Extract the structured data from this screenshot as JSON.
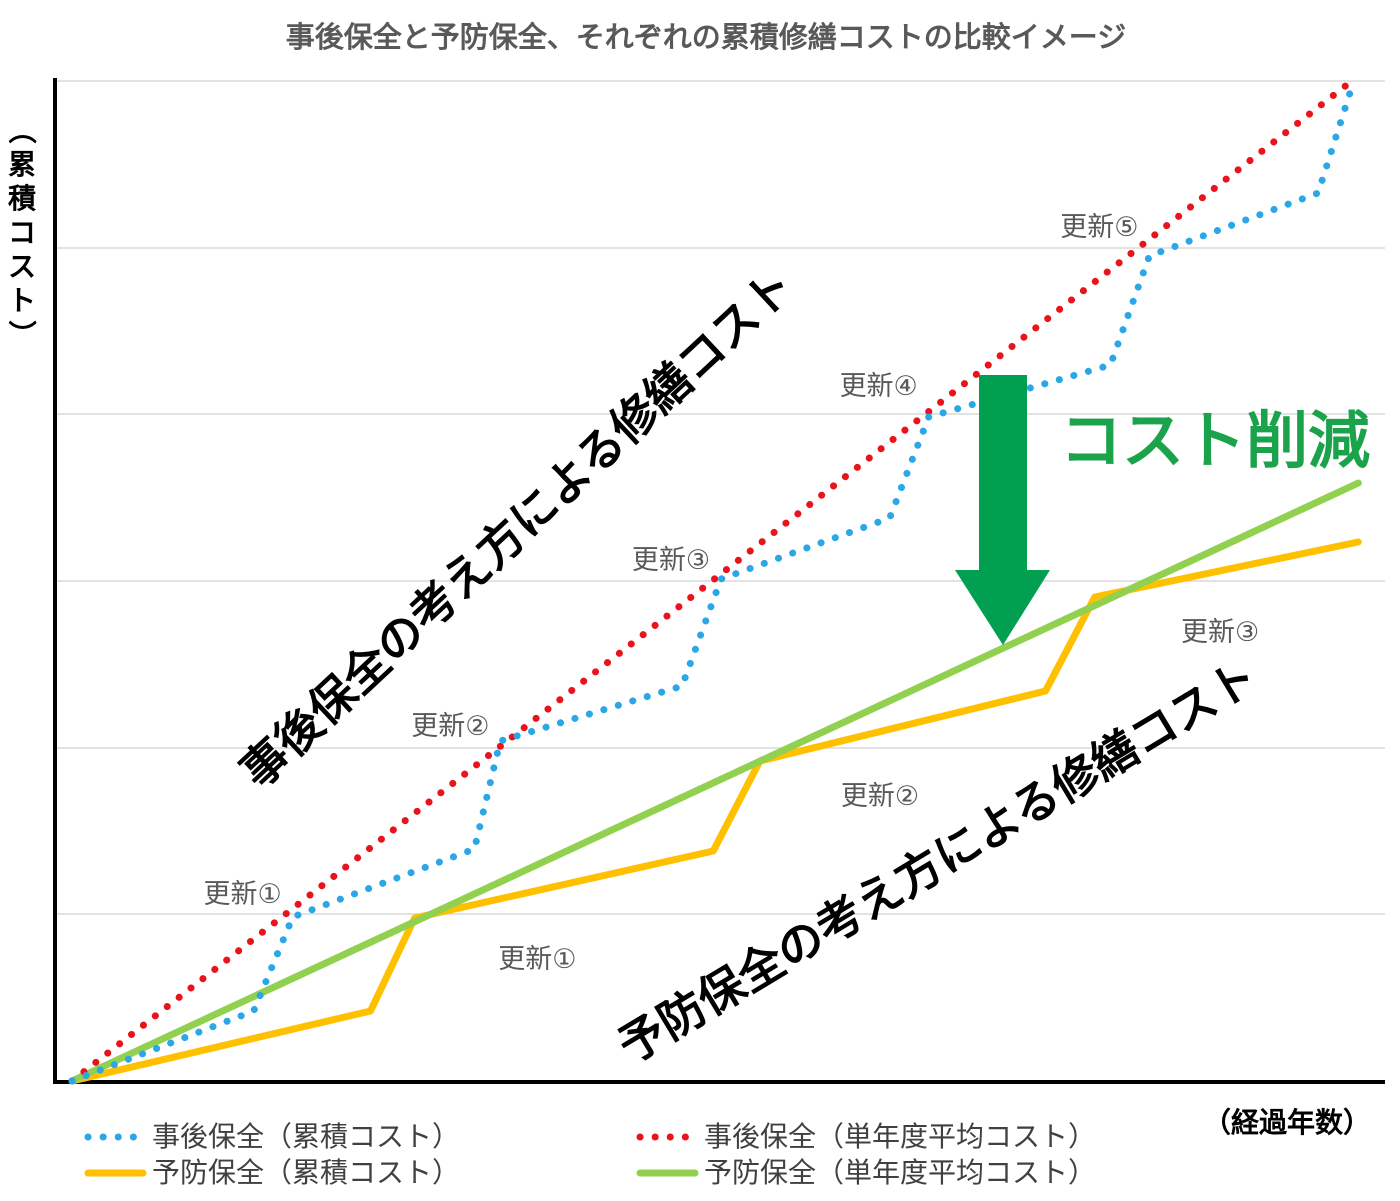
{
  "chart_data": {
    "type": "line",
    "title": "事後保全と予防保全、それぞれの累積修繕コストの比較イメージ",
    "xlabel": "（経過年数）",
    "ylabel": "（累積コスト）",
    "grid": "horizontal",
    "legend_position": "bottom",
    "xlim": [
      0,
      100
    ],
    "ylim": [
      0,
      100
    ],
    "y_gridlines": [
      0,
      16.7,
      33.3,
      50,
      66.7,
      83.3,
      100
    ],
    "series": [
      {
        "name": "事後保全（累積コスト）",
        "color": "#2ba6e6",
        "style": "dotted",
        "points": [
          [
            0,
            0
          ],
          [
            14,
            7
          ],
          [
            17,
            16.4
          ],
          [
            31,
            23.2
          ],
          [
            33,
            34
          ],
          [
            47,
            39.5
          ],
          [
            50,
            50.2
          ],
          [
            63,
            56.3
          ],
          [
            66,
            66.4
          ],
          [
            80,
            71.6
          ],
          [
            83,
            82.5
          ],
          [
            96,
            88.8
          ],
          [
            98.6,
            99.4
          ]
        ]
      },
      {
        "name": "事後保全（単年度平均コスト）",
        "color": "#e8131b",
        "style": "dotted",
        "points": [
          [
            0,
            0
          ],
          [
            98.6,
            100
          ]
        ]
      },
      {
        "name": "予防保全（累積コスト）",
        "color": "#ffc000",
        "style": "solid",
        "points": [
          [
            0,
            0
          ],
          [
            23,
            7
          ],
          [
            26.4,
            16.3
          ],
          [
            49.4,
            23
          ],
          [
            53,
            32
          ],
          [
            75,
            39
          ],
          [
            78.8,
            48.4
          ],
          [
            99.1,
            53.9
          ]
        ]
      },
      {
        "name": "予防保全（単年度平均コスト）",
        "color": "#92d050",
        "style": "solid",
        "points": [
          [
            0,
            0
          ],
          [
            99.1,
            59.8
          ]
        ]
      }
    ],
    "annotations": {
      "reactive_updates": [
        {
          "label": "更新①",
          "x": 17,
          "y": 18.8
        },
        {
          "label": "更新②",
          "x": 33,
          "y": 35.6
        },
        {
          "label": "更新③",
          "x": 50,
          "y": 52.2
        },
        {
          "label": "更新④",
          "x": 66,
          "y": 69.6
        },
        {
          "label": "更新⑤",
          "x": 83,
          "y": 85.5
        }
      ],
      "preventive_updates": [
        {
          "label": "更新①",
          "x": 32,
          "y": 12.3
        },
        {
          "label": "更新②",
          "x": 58.4,
          "y": 28.6
        },
        {
          "label": "更新③",
          "x": 84.6,
          "y": 45
        }
      ],
      "reactive_text": "事後保全の考え方による修繕コスト",
      "preventive_text": "予防保全の考え方による修繕コスト",
      "saving_text": "コスト削減",
      "arrow_color": "#00a050",
      "saving_color": "#1aa34a"
    }
  }
}
